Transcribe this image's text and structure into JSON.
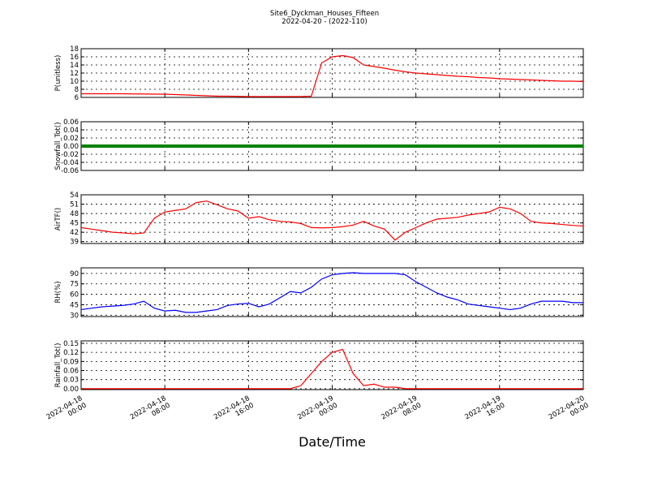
{
  "title": "Site6_Dyckman_Houses_Fifteen",
  "subtitle": "2022-04-20 - (2022-110)",
  "chart_data": [
    {
      "type": "line",
      "ylabel": "P(unitless)",
      "color": "#ff0000",
      "grid": true,
      "ylim": [
        6,
        18
      ],
      "yticks": [
        6,
        8,
        10,
        12,
        14,
        16,
        18
      ],
      "values": [
        6.9,
        6.9,
        6.9,
        6.9,
        6.9,
        6.85,
        6.85,
        6.8,
        6.8,
        6.7,
        6.6,
        6.5,
        6.4,
        6.3,
        6.3,
        6.25,
        6.2,
        6.2,
        6.2,
        6.2,
        6.2,
        6.2,
        6.3,
        14.5,
        16,
        16.3,
        15.8,
        14,
        13.6,
        13.2,
        12.7,
        12.3,
        12,
        11.8,
        11.6,
        11.4,
        11.2,
        11.1,
        10.9,
        10.8,
        10.6,
        10.5,
        10.4,
        10.3,
        10.2,
        10.1,
        10,
        10,
        9.9
      ]
    },
    {
      "type": "line",
      "ylabel": "Snowfall_Tot()",
      "color": "#008000",
      "linewidth": 4,
      "grid": true,
      "ylim": [
        -0.06,
        0.06
      ],
      "yticks": [
        -0.06,
        -0.04,
        -0.02,
        {
          "value": 0,
          "label": "0.00"
        },
        0.02,
        0.04,
        0.06
      ],
      "values": [
        0,
        0,
        0,
        0,
        0,
        0,
        0,
        0,
        0,
        0,
        0,
        0,
        0,
        0,
        0,
        0,
        0,
        0,
        0,
        0,
        0,
        0,
        0,
        0,
        0,
        0,
        0,
        0,
        0,
        0,
        0,
        0,
        0,
        0,
        0,
        0,
        0,
        0,
        0,
        0,
        0,
        0,
        0,
        0,
        0,
        0,
        0,
        0,
        0
      ]
    },
    {
      "type": "line",
      "ylabel": "AirTF()",
      "color": "#ff0000",
      "grid": true,
      "ylim": [
        38.4,
        54
      ],
      "yticks": [
        39,
        42,
        45,
        48,
        51,
        54
      ],
      "values": [
        43.5,
        43,
        42.5,
        42,
        41.8,
        41.5,
        41.8,
        46.5,
        48.5,
        49,
        49.5,
        51.5,
        52,
        50.8,
        49.5,
        48.8,
        46.5,
        47,
        46,
        45.5,
        45.3,
        44.8,
        43.5,
        43.4,
        43.5,
        43.8,
        44.3,
        45.5,
        44,
        43,
        39.5,
        42,
        43.5,
        45,
        46.2,
        46.5,
        46.8,
        47.5,
        48,
        48.5,
        50,
        49.5,
        48,
        45.5,
        45,
        44.8,
        44.5,
        44.2,
        44
      ]
    },
    {
      "type": "line",
      "ylabel": "RH(%)",
      "color": "#0000ff",
      "grid": true,
      "ylim": [
        28,
        98
      ],
      "yticks": [
        30,
        45,
        60,
        75,
        90
      ],
      "values": [
        38,
        40,
        42,
        43,
        44,
        46,
        50,
        40,
        36,
        37,
        34,
        34,
        36,
        38,
        44,
        46,
        47,
        42,
        46,
        55,
        64,
        62,
        70,
        82,
        88,
        90,
        91,
        90,
        90,
        90,
        90,
        88,
        78,
        70,
        62,
        56,
        52,
        46,
        44,
        42,
        40,
        38,
        40,
        46,
        50,
        50,
        50,
        48,
        48
      ]
    },
    {
      "type": "line",
      "ylabel": "Rainfall_Tot()",
      "xlabel": "Date/Time",
      "color": "#ff0000",
      "grid": true,
      "ylim": [
        -0.003,
        0.158
      ],
      "yticks": [
        {
          "value": 0,
          "label": "0.00"
        },
        0.03,
        0.06,
        0.09,
        0.12,
        0.15
      ],
      "xlim": [
        "2022-04-18 00:00",
        "2022-04-20 00:00"
      ],
      "xticks": [
        "2022-04-18 00:00",
        "2022-04-18 08:00",
        "2022-04-18 16:00",
        "2022-04-19 00:00",
        "2022-04-19 08:00",
        "2022-04-19 16:00",
        "2022-04-20 00:00"
      ],
      "x": [
        "2022-04-18 00:00",
        "2022-04-18 01:00",
        "2022-04-18 02:00",
        "2022-04-18 03:00",
        "2022-04-18 04:00",
        "2022-04-18 05:00",
        "2022-04-18 06:00",
        "2022-04-18 07:00",
        "2022-04-18 08:00",
        "2022-04-18 09:00",
        "2022-04-18 10:00",
        "2022-04-18 11:00",
        "2022-04-18 12:00",
        "2022-04-18 13:00",
        "2022-04-18 14:00",
        "2022-04-18 15:00",
        "2022-04-18 16:00",
        "2022-04-18 17:00",
        "2022-04-18 18:00",
        "2022-04-18 19:00",
        "2022-04-18 20:00",
        "2022-04-18 21:00",
        "2022-04-18 22:00",
        "2022-04-18 23:00",
        "2022-04-19 00:00",
        "2022-04-19 01:00",
        "2022-04-19 02:00",
        "2022-04-19 03:00",
        "2022-04-19 04:00",
        "2022-04-19 05:00",
        "2022-04-19 06:00",
        "2022-04-19 07:00",
        "2022-04-19 08:00",
        "2022-04-19 09:00",
        "2022-04-19 10:00",
        "2022-04-19 11:00",
        "2022-04-19 12:00",
        "2022-04-19 13:00",
        "2022-04-19 14:00",
        "2022-04-19 15:00",
        "2022-04-19 16:00",
        "2022-04-19 17:00",
        "2022-04-19 18:00",
        "2022-04-19 19:00",
        "2022-04-19 20:00",
        "2022-04-19 21:00",
        "2022-04-19 22:00",
        "2022-04-19 23:00",
        "2022-04-20 00:00"
      ],
      "values": [
        0,
        0,
        0,
        0,
        0,
        0,
        0,
        0,
        0,
        0,
        0,
        0,
        0,
        0,
        0,
        0,
        0,
        0,
        0,
        0,
        0,
        0.01,
        0.05,
        0.09,
        0.12,
        0.13,
        0.05,
        0.01,
        0.015,
        0.005,
        0.005,
        0,
        0,
        0,
        0,
        0,
        0,
        0,
        0,
        0,
        0,
        0,
        0,
        0,
        0,
        0,
        0,
        0,
        0
      ]
    }
  ]
}
